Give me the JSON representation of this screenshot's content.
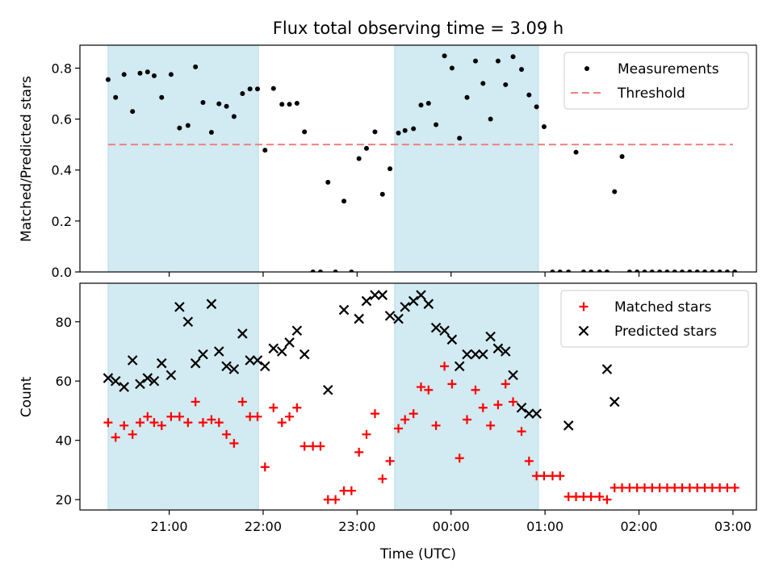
{
  "chart_data": {
    "title": "Flux total observing time = 3.09 h",
    "xlabel": "Time (UTC)",
    "x_unit": "hours since 00:00 UTC (negative = previous day)",
    "xlim": [
      -3.95,
      3.25
    ],
    "xticks": [
      {
        "value": -3,
        "label": "21:00"
      },
      {
        "value": -2,
        "label": "22:00"
      },
      {
        "value": -1,
        "label": "23:00"
      },
      {
        "value": 0,
        "label": "00:00"
      },
      {
        "value": 1,
        "label": "01:00"
      },
      {
        "value": 2,
        "label": "02:00"
      },
      {
        "value": 3,
        "label": "03:00"
      }
    ],
    "shaded_intervals": [
      [
        -3.65,
        -2.05
      ],
      [
        -0.6,
        0.93
      ]
    ],
    "shade_color": "#add8e6",
    "panels": [
      {
        "type": "scatter",
        "ylabel": "Matched/Predicted stars",
        "ylim": [
          0,
          0.89
        ],
        "yticks": [
          "0.0",
          "0.2",
          "0.4",
          "0.6",
          "0.8"
        ],
        "legend_position": "top-right",
        "threshold": {
          "name": "Threshold",
          "y": 0.5,
          "x_range": [
            -3.65,
            3.0
          ],
          "color": "#f08080"
        },
        "series": [
          {
            "name": "Measurements",
            "color": "#000000",
            "marker": "dot",
            "x": [
              -3.65,
              -3.57,
              -3.48,
              -3.39,
              -3.31,
              -3.23,
              -3.16,
              -3.08,
              -2.98,
              -2.89,
              -2.8,
              -2.72,
              -2.64,
              -2.55,
              -2.47,
              -2.39,
              -2.31,
              -2.22,
              -2.14,
              -2.06,
              -1.98,
              -1.89,
              -1.8,
              -1.72,
              -1.64,
              -1.56,
              -1.47,
              -1.39,
              -1.31,
              -1.23,
              -1.14,
              -1.06,
              -0.98,
              -0.9,
              -0.81,
              -0.73,
              -0.65,
              -0.56,
              -0.49,
              -0.4,
              -0.32,
              -0.24,
              -0.16,
              -0.07,
              0.01,
              0.09,
              0.17,
              0.26,
              0.34,
              0.42,
              0.5,
              0.58,
              0.66,
              0.75,
              0.83,
              0.91,
              0.99,
              1.08,
              1.16,
              1.25,
              1.33,
              1.41,
              1.49,
              1.58,
              1.66,
              1.74,
              1.82,
              1.9,
              1.98,
              2.06,
              2.14,
              2.22,
              2.3,
              2.38,
              2.46,
              2.54,
              2.62,
              2.7,
              2.78,
              2.86,
              2.94,
              3.02
            ],
            "y": [
              0.755,
              0.685,
              0.775,
              0.63,
              0.78,
              0.785,
              0.77,
              0.685,
              0.775,
              0.565,
              0.575,
              0.805,
              0.665,
              0.548,
              0.66,
              0.65,
              0.61,
              0.7,
              0.718,
              0.718,
              0.478,
              0.72,
              0.658,
              0.658,
              0.662,
              0.55,
              0.0,
              0.0,
              0.352,
              0.0,
              0.278,
              0.0,
              0.445,
              0.485,
              0.55,
              0.305,
              0.405,
              0.545,
              0.555,
              0.562,
              0.655,
              0.662,
              0.578,
              0.848,
              0.8,
              0.525,
              0.685,
              0.828,
              0.74,
              0.6,
              0.828,
              0.735,
              0.845,
              0.795,
              0.695,
              0.648,
              0.57,
              0.0,
              0.0,
              0.0,
              0.47,
              0.0,
              0.0,
              0.0,
              0.0,
              0.315,
              0.453,
              0.0,
              0.0,
              0.0,
              0.0,
              0.0,
              0.0,
              0.0,
              0.0,
              0.0,
              0.0,
              0.0,
              0.0,
              0.0,
              0.0,
              0.0
            ]
          }
        ]
      },
      {
        "type": "scatter",
        "ylabel": "Count",
        "ylim": [
          16.5,
          93
        ],
        "yticks": [
          "20",
          "40",
          "60",
          "80"
        ],
        "legend_position": "top-right",
        "series": [
          {
            "name": "Matched stars",
            "color": "#ff0000",
            "marker": "plus",
            "x": [
              -3.65,
              -3.57,
              -3.48,
              -3.39,
              -3.31,
              -3.23,
              -3.16,
              -3.08,
              -2.98,
              -2.89,
              -2.8,
              -2.72,
              -2.64,
              -2.55,
              -2.47,
              -2.39,
              -2.31,
              -2.22,
              -2.14,
              -2.06,
              -1.98,
              -1.89,
              -1.8,
              -1.72,
              -1.64,
              -1.56,
              -1.47,
              -1.39,
              -1.31,
              -1.23,
              -1.14,
              -1.06,
              -0.98,
              -0.9,
              -0.81,
              -0.73,
              -0.65,
              -0.56,
              -0.49,
              -0.4,
              -0.32,
              -0.24,
              -0.16,
              -0.07,
              0.01,
              0.09,
              0.17,
              0.26,
              0.34,
              0.42,
              0.5,
              0.58,
              0.66,
              0.75,
              0.83,
              0.91,
              0.99,
              1.08,
              1.16,
              1.25,
              1.33,
              1.41,
              1.49,
              1.58,
              1.66,
              1.74,
              1.82,
              1.9,
              1.98,
              2.06,
              2.14,
              2.22,
              2.3,
              2.38,
              2.46,
              2.54,
              2.62,
              2.7,
              2.78,
              2.86,
              2.94,
              3.02
            ],
            "y": [
              46,
              41,
              45,
              42,
              46,
              48,
              46,
              45,
              48,
              48,
              46,
              53,
              46,
              47,
              46,
              42,
              39,
              53,
              48,
              48,
              31,
              51,
              46,
              48,
              51,
              38,
              38,
              38,
              20,
              20,
              23,
              23,
              36,
              42,
              49,
              27,
              33,
              44,
              47,
              49,
              58,
              57,
              45,
              65,
              59,
              34,
              47,
              57,
              51,
              45,
              52,
              59,
              53,
              43,
              33,
              28,
              28,
              28,
              28,
              21,
              21,
              21,
              21,
              21,
              20,
              24,
              24,
              24,
              24,
              24,
              24,
              24,
              24,
              24,
              24,
              24,
              24,
              24,
              24,
              24,
              24,
              24
            ]
          },
          {
            "name": "Predicted stars",
            "color": "#000000",
            "marker": "cross",
            "x": [
              -3.65,
              -3.57,
              -3.48,
              -3.39,
              -3.31,
              -3.23,
              -3.16,
              -3.08,
              -2.98,
              -2.89,
              -2.8,
              -2.72,
              -2.64,
              -2.55,
              -2.47,
              -2.39,
              -2.31,
              -2.22,
              -2.14,
              -2.06,
              -1.98,
              -1.89,
              -1.8,
              -1.72,
              -1.64,
              -1.56,
              -1.31,
              -1.14,
              -0.98,
              -0.9,
              -0.81,
              -0.73,
              -0.65,
              -0.56,
              -0.49,
              -0.4,
              -0.32,
              -0.24,
              -0.16,
              -0.07,
              0.01,
              0.09,
              0.17,
              0.26,
              0.34,
              0.42,
              0.5,
              0.58,
              0.66,
              0.75,
              0.83,
              0.91,
              1.25,
              1.66,
              1.74
            ],
            "y": [
              61,
              60,
              58,
              67,
              59,
              61,
              60,
              66,
              62,
              85,
              80,
              66,
              69,
              86,
              70,
              65,
              64,
              76,
              67,
              67,
              65,
              71,
              70,
              73,
              77,
              69,
              57,
              84,
              81,
              87,
              89,
              89,
              82,
              81,
              85,
              87,
              89,
              86,
              78,
              77,
              74,
              65,
              69,
              69,
              69,
              75,
              71,
              70,
              62,
              51,
              49,
              49,
              45,
              64,
              53
            ]
          }
        ]
      }
    ]
  }
}
